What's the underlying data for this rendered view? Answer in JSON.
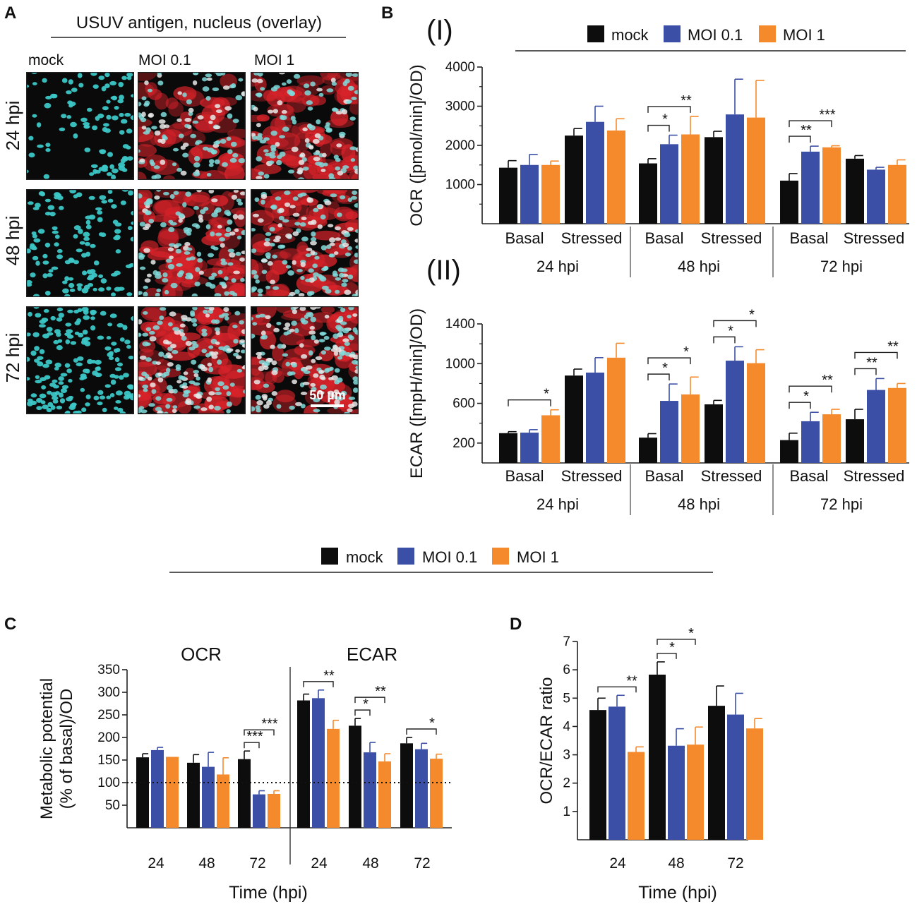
{
  "colors": {
    "mock": "#0d0d0d",
    "moi01": "#3c4fa6",
    "moi1": "#f58a2c",
    "nucleus": "#3cc6c6",
    "antigen": "#d8232a",
    "axis": "#222222"
  },
  "legend_labels": [
    "mock",
    "MOI 0.1",
    "MOI 1"
  ],
  "panel_a": {
    "letter": "A",
    "title": "USUV antigen, nucleus (overlay)",
    "columns": [
      "mock",
      "MOI 0.1",
      "MOI 1"
    ],
    "rows": [
      "24 hpi",
      "48 hpi",
      "72 hpi"
    ],
    "scale_bar": "50 µm"
  },
  "panel_b": {
    "letter": "B",
    "sub_i": "(I)",
    "sub_ii": "(II)",
    "x_sublabels": [
      "Basal",
      "Stressed",
      "Basal",
      "Stressed",
      "Basal",
      "Stressed"
    ],
    "x_groups": [
      "24 hpi",
      "48 hpi",
      "72 hpi"
    ]
  },
  "panel_c": {
    "letter": "C",
    "left_title": "OCR",
    "right_title": "ECAR"
  },
  "panel_d": {
    "letter": "D"
  },
  "chart_data": [
    {
      "id": "ocr",
      "type": "bar",
      "ylabel": "OCR ([pmol/min]/OD)",
      "ylim": [
        0,
        4000
      ],
      "yticks": [
        1000,
        2000,
        3000,
        4000
      ],
      "categories": [
        "24 hpi Basal",
        "24 hpi Stressed",
        "48 hpi Basal",
        "48 hpi Stressed",
        "72 hpi Basal",
        "72 hpi Stressed"
      ],
      "series": [
        {
          "name": "mock",
          "values": [
            1430,
            2250,
            1540,
            2210,
            1100,
            1660
          ],
          "errors": [
            180,
            180,
            120,
            150,
            180,
            80
          ]
        },
        {
          "name": "MOI 0.1",
          "values": [
            1500,
            2600,
            2030,
            2790,
            1840,
            1380
          ],
          "errors": [
            270,
            400,
            230,
            900,
            140,
            60
          ]
        },
        {
          "name": "MOI 1",
          "values": [
            1500,
            2380,
            2280,
            2710,
            1950,
            1500
          ],
          "errors": [
            100,
            300,
            460,
            950,
            40,
            130
          ]
        }
      ],
      "significance": [
        {
          "group": 2,
          "from": 0,
          "to": 1,
          "label": "*"
        },
        {
          "group": 2,
          "from": 0,
          "to": 2,
          "label": "**"
        },
        {
          "group": 4,
          "from": 0,
          "to": 1,
          "label": "**"
        },
        {
          "group": 4,
          "from": 0,
          "to": 2,
          "label": "***"
        }
      ]
    },
    {
      "id": "ecar",
      "type": "bar",
      "ylabel": "ECAR ([mpH/min]/OD)",
      "ylim": [
        0,
        1400
      ],
      "yticks": [
        200,
        600,
        1000,
        1400
      ],
      "categories": [
        "24 hpi Basal",
        "24 hpi Stressed",
        "48 hpi Basal",
        "48 hpi Stressed",
        "72 hpi Basal",
        "72 hpi Stressed"
      ],
      "series": [
        {
          "name": "mock",
          "values": [
            300,
            880,
            255,
            590,
            230,
            440
          ],
          "errors": [
            15,
            65,
            40,
            40,
            70,
            100
          ]
        },
        {
          "name": "MOI 0.1",
          "values": [
            305,
            910,
            625,
            1030,
            420,
            735
          ],
          "errors": [
            30,
            150,
            170,
            140,
            90,
            115
          ]
        },
        {
          "name": "MOI 1",
          "values": [
            480,
            1060,
            690,
            1005,
            490,
            755
          ],
          "errors": [
            55,
            145,
            175,
            135,
            50,
            45
          ]
        }
      ],
      "significance": [
        {
          "group": 0,
          "from": 0,
          "to": 2,
          "label": "*"
        },
        {
          "group": 2,
          "from": 0,
          "to": 1,
          "label": "*"
        },
        {
          "group": 2,
          "from": 0,
          "to": 2,
          "label": "*"
        },
        {
          "group": 3,
          "from": 0,
          "to": 1,
          "label": "*"
        },
        {
          "group": 3,
          "from": 0,
          "to": 2,
          "label": "*"
        },
        {
          "group": 4,
          "from": 0,
          "to": 1,
          "label": "*"
        },
        {
          "group": 4,
          "from": 0,
          "to": 2,
          "label": "**"
        },
        {
          "group": 5,
          "from": 0,
          "to": 1,
          "label": "**"
        },
        {
          "group": 5,
          "from": 0,
          "to": 2,
          "label": "**"
        }
      ]
    },
    {
      "id": "metabolic",
      "type": "bar",
      "ylabel_line1": "Metabolic potential",
      "ylabel_line2": "(% of basal)/OD",
      "xlabel": "Time (hpi)",
      "ylim": [
        0,
        350
      ],
      "yticks": [
        50,
        100,
        150,
        200,
        250,
        300,
        350
      ],
      "reference_line": 100,
      "categories": [
        "24",
        "48",
        "72",
        "24",
        "48",
        "72"
      ],
      "series": [
        {
          "name": "mock",
          "values": [
            156,
            144,
            152,
            282,
            226,
            187
          ],
          "errors": [
            8,
            18,
            18,
            14,
            16,
            13
          ]
        },
        {
          "name": "MOI 0.1",
          "values": [
            172,
            135,
            74,
            287,
            167,
            174
          ],
          "errors": [
            6,
            32,
            8,
            18,
            22,
            13
          ]
        },
        {
          "name": "MOI 1",
          "values": [
            157,
            118,
            75,
            219,
            147,
            153
          ],
          "errors": [
            0,
            37,
            7,
            19,
            17,
            10
          ]
        }
      ],
      "significance": [
        {
          "group": 2,
          "from": 0,
          "to": 1,
          "label": "***"
        },
        {
          "group": 2,
          "from": 0,
          "to": 2,
          "label": "***"
        },
        {
          "group": 3,
          "from": 0,
          "to": 2,
          "label": "**"
        },
        {
          "group": 4,
          "from": 0,
          "to": 1,
          "label": "*"
        },
        {
          "group": 4,
          "from": 0,
          "to": 2,
          "label": "**"
        },
        {
          "group": 5,
          "from": 0,
          "to": 2,
          "label": "*"
        }
      ]
    },
    {
      "id": "ratio",
      "type": "bar",
      "ylabel": "OCR/ECAR ratio",
      "xlabel": "Time (hpi)",
      "ylim": [
        0,
        7
      ],
      "yticks": [
        1,
        2,
        3,
        4,
        5,
        6,
        7
      ],
      "categories": [
        "24",
        "48",
        "72"
      ],
      "series": [
        {
          "name": "mock",
          "values": [
            4.58,
            5.83,
            4.73
          ],
          "errors": [
            0.42,
            0.45,
            0.7
          ]
        },
        {
          "name": "MOI 0.1",
          "values": [
            4.7,
            3.32,
            4.42
          ],
          "errors": [
            0.4,
            0.6,
            0.75
          ]
        },
        {
          "name": "MOI 1",
          "values": [
            3.1,
            3.36,
            3.93
          ],
          "errors": [
            0.18,
            0.62,
            0.35
          ]
        }
      ],
      "significance": [
        {
          "group": 0,
          "from": 0,
          "to": 2,
          "label": "**"
        },
        {
          "group": 1,
          "from": 0,
          "to": 1,
          "label": "*"
        },
        {
          "group": 1,
          "from": 0,
          "to": 2,
          "label": "*"
        }
      ]
    }
  ]
}
